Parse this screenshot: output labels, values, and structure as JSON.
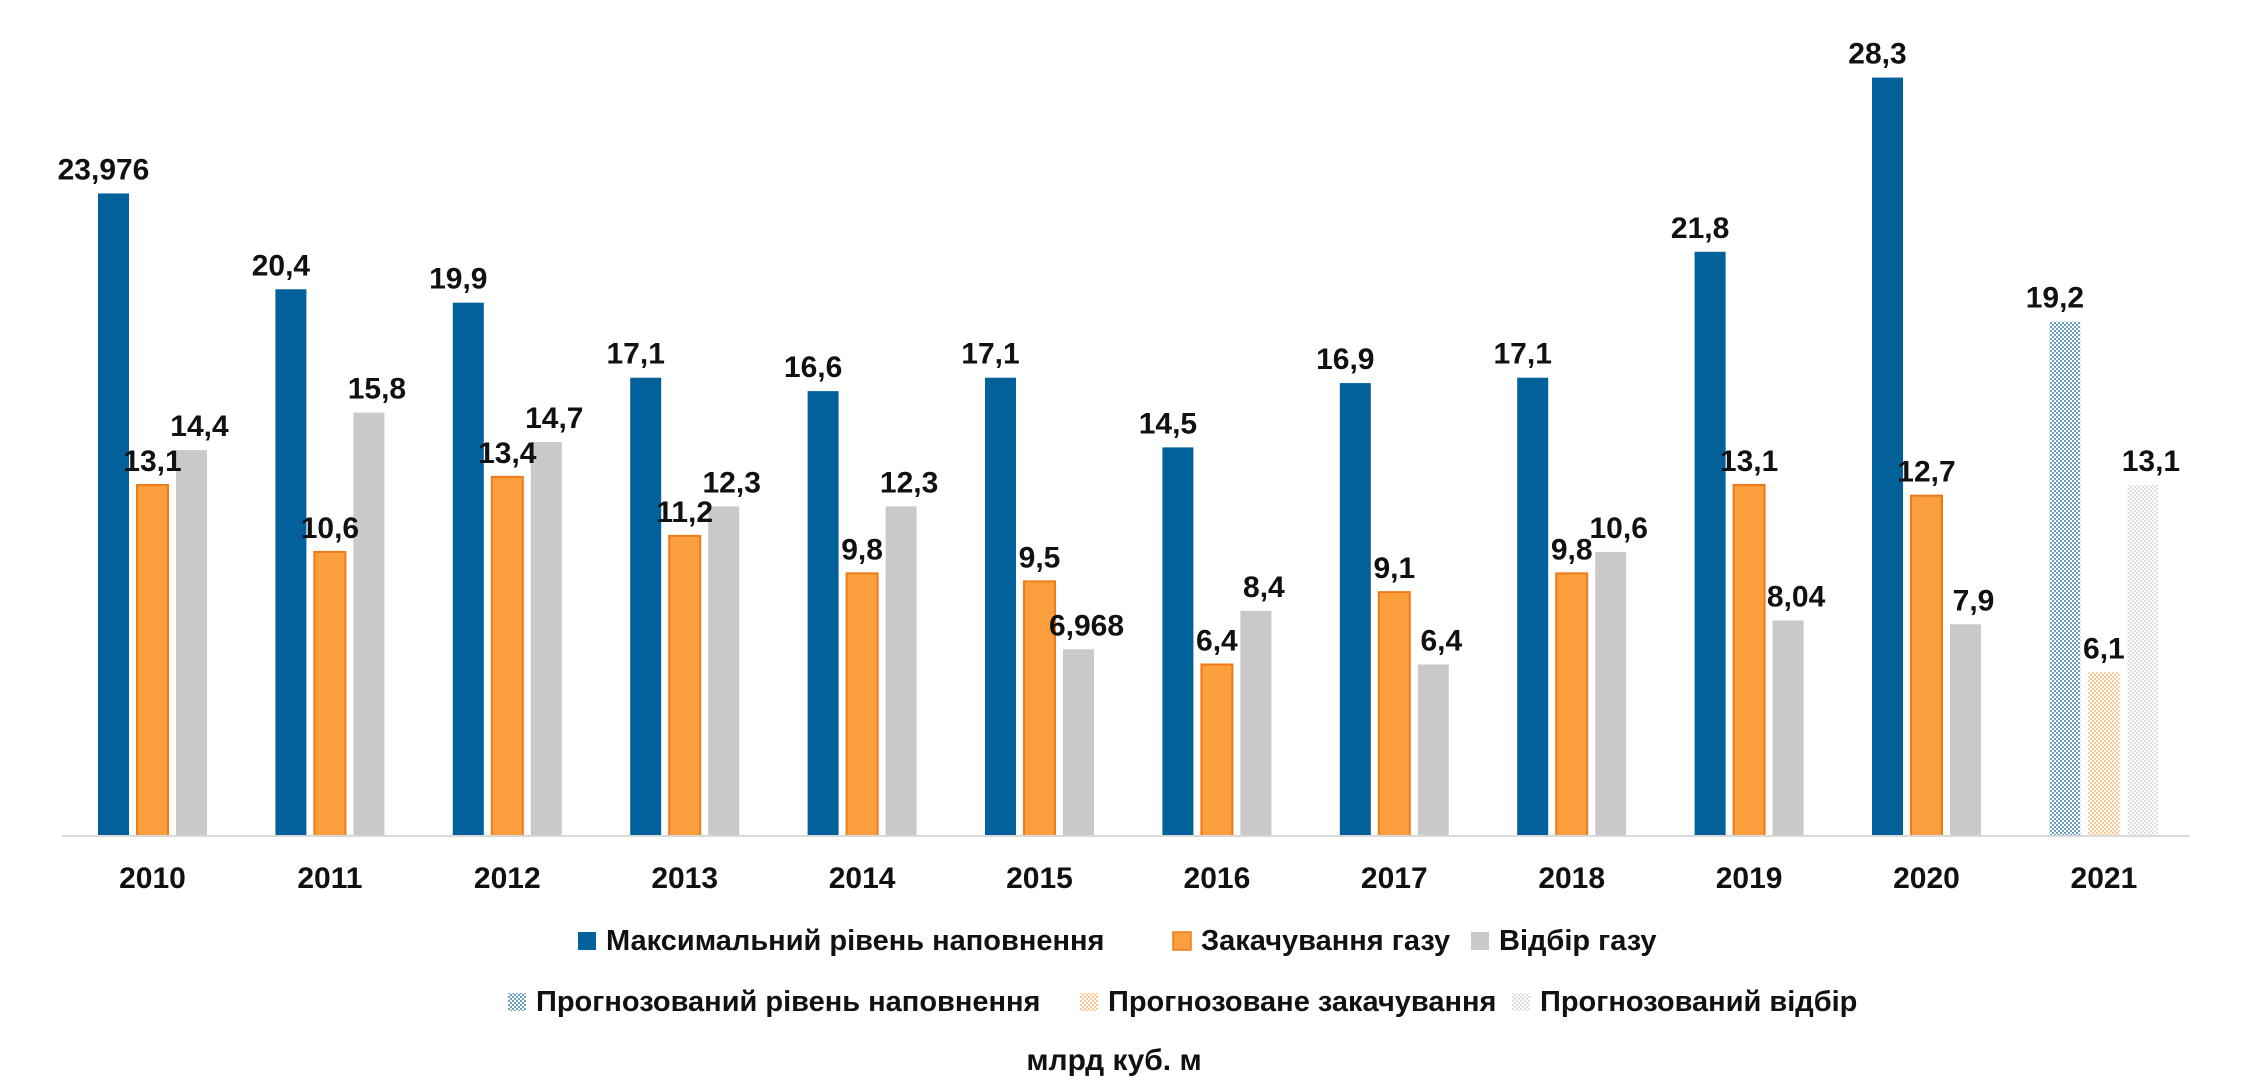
{
  "chart_data": {
    "type": "bar",
    "title": "",
    "xlabel": "",
    "ylabel": "",
    "unit_label": "млрд куб. м",
    "categories": [
      "2010",
      "2011",
      "2012",
      "2013",
      "2014",
      "2015",
      "2016",
      "2017",
      "2018",
      "2019",
      "2020",
      "2021"
    ],
    "ylim": [
      0,
      30
    ],
    "grid": false,
    "legend_position": "bottom",
    "series": [
      {
        "name": "Максимальний рівень наповнення",
        "color": "#02609a",
        "values": [
          23.976,
          20.4,
          19.9,
          17.1,
          16.6,
          17.1,
          14.5,
          16.9,
          17.1,
          21.8,
          28.3,
          null
        ],
        "labels": [
          "23,976",
          "20,4",
          "19,9",
          "17,1",
          "16,6",
          "17,1",
          "14,5",
          "16,9",
          "17,1",
          "21,8",
          "28,3",
          ""
        ]
      },
      {
        "name": "Закачування газу",
        "color": "#fb9e3d",
        "values": [
          13.1,
          10.6,
          13.4,
          11.2,
          9.8,
          9.5,
          6.4,
          9.1,
          9.8,
          13.1,
          12.7,
          null
        ],
        "labels": [
          "13,1",
          "10,6",
          "13,4",
          "11,2",
          "9,8",
          "9,5",
          "6,4",
          "9,1",
          "9,8",
          "13,1",
          "12,7",
          ""
        ]
      },
      {
        "name": "Відбір газу",
        "color": "#c9c9c9",
        "values": [
          14.4,
          15.8,
          14.7,
          12.3,
          12.3,
          6.968,
          8.4,
          6.4,
          10.6,
          8.04,
          7.9,
          null
        ],
        "labels": [
          "14,4",
          "15,8",
          "14,7",
          "12,3",
          "12,3",
          "6,968",
          "8,4",
          "6,4",
          "10,6",
          "8,04",
          "7,9",
          ""
        ]
      },
      {
        "name": "Прогнозований рівень наповнення",
        "color": "#02609a",
        "pattern": "dotted",
        "values": [
          null,
          null,
          null,
          null,
          null,
          null,
          null,
          null,
          null,
          null,
          null,
          19.2
        ],
        "labels": [
          "",
          "",
          "",
          "",
          "",
          "",
          "",
          "",
          "",
          "",
          "",
          "19,2"
        ]
      },
      {
        "name": "Прогнозоване закачування",
        "color": "#fb9e3d",
        "pattern": "dotted",
        "values": [
          null,
          null,
          null,
          null,
          null,
          null,
          null,
          null,
          null,
          null,
          null,
          6.1
        ],
        "labels": [
          "",
          "",
          "",
          "",
          "",
          "",
          "",
          "",
          "",
          "",
          "",
          "6,1"
        ]
      },
      {
        "name": "Прогнозований відбір",
        "color": "#c9c9c9",
        "pattern": "dotted",
        "values": [
          null,
          null,
          null,
          null,
          null,
          null,
          null,
          null,
          null,
          null,
          null,
          13.1
        ],
        "labels": [
          "",
          "",
          "",
          "",
          "",
          "",
          "",
          "",
          "",
          "",
          "",
          "13,1"
        ]
      }
    ]
  }
}
